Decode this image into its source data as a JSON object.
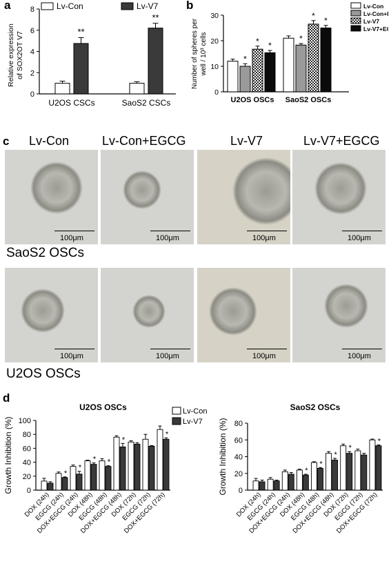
{
  "colors": {
    "white_bar": "#ffffff",
    "dark_bar": "#3a3a3a",
    "gray_bar": "#9a9a9a",
    "black_bar": "#0b0b0b",
    "photo_bg": "#d3d4cf",
    "photo_bg_warm": "#d6d2c6",
    "sphere": "#9c9c94"
  },
  "panels": {
    "a": "a",
    "b": "b",
    "c": "c",
    "d": "d"
  },
  "section_c": {
    "headers": [
      "Lv-Con",
      "Lv-Con+EGCG",
      "Lv-V7",
      "Lv-V7+EGCG"
    ],
    "row1_label": "SaoS2 OSCs",
    "row2_label": "U2OS OSCs",
    "scale_label": "100μm"
  },
  "chart_data": [
    {
      "type": "bar",
      "panel": "a",
      "categories": [
        "U2OS CSCs",
        "SaoS2 CSCs"
      ],
      "series": [
        {
          "name": "Lv-Con",
          "values": [
            1.0,
            1.0
          ],
          "errors": [
            0.2,
            0.15
          ]
        },
        {
          "name": "Lv-V7",
          "values": [
            4.75,
            6.2
          ],
          "errors": [
            0.55,
            0.45
          ]
        }
      ],
      "ylabel": "Relative expression of SOX2OT V7",
      "ylim": [
        0,
        8
      ],
      "yticks": [
        "0",
        "2",
        "4",
        "6",
        "8"
      ],
      "annotations": [
        "**",
        "**"
      ]
    },
    {
      "type": "bar",
      "panel": "b",
      "categories": [
        "U2OS OSCs",
        "SaoS2 OSCs"
      ],
      "series": [
        {
          "name": "Lv-Con",
          "values": [
            12,
            21
          ],
          "errors": [
            0.8,
            0.9
          ]
        },
        {
          "name": "Lv-Con+EGCG",
          "values": [
            10,
            18.3
          ],
          "errors": [
            1.0,
            0.6
          ]
        },
        {
          "name": "Lv-V7",
          "values": [
            16.7,
            26.5
          ],
          "errors": [
            1.2,
            1.4
          ]
        },
        {
          "name": "Lv-V7+EGCG",
          "values": [
            15.3,
            25
          ],
          "errors": [
            0.9,
            1.0
          ]
        }
      ],
      "ylabel": "Number of spheres per well / 10³ cells",
      "ylim": [
        0,
        30
      ],
      "yticks": [
        "0",
        "10",
        "20",
        "30"
      ],
      "annotations": [
        "*",
        "*",
        "*",
        "*",
        "*",
        "*"
      ]
    },
    {
      "type": "bar",
      "panel": "d-left",
      "title": "U2OS OSCs",
      "categories": [
        "DOX (24h)",
        "EGCG (24h)",
        "DOX+EGCG (24h)",
        "DOX (48h)",
        "EGCG (48h)",
        "DOX+EGCG (48h)",
        "DOX (72h)",
        "EGCG (72h)",
        "DOX+EGCG (72h)"
      ],
      "series": [
        {
          "name": "Lv-Con",
          "values": [
            13,
            24,
            34,
            42,
            42,
            76,
            69,
            73,
            87
          ],
          "errors": [
            4,
            2,
            2,
            1,
            3,
            2,
            2,
            7,
            5
          ]
        },
        {
          "name": "Lv-V7",
          "values": [
            10,
            18,
            23,
            37,
            34,
            62,
            66,
            63,
            73
          ],
          "errors": [
            2,
            1,
            4,
            2,
            1,
            5,
            2,
            1,
            2
          ]
        }
      ],
      "stars": [
        false,
        true,
        true,
        true,
        true,
        true,
        false,
        false,
        true
      ],
      "ylabel": "Growth Inhibition (%)",
      "ylim": [
        0,
        100
      ],
      "yticks": [
        "0",
        "20",
        "40",
        "60",
        "80",
        "100"
      ]
    },
    {
      "type": "bar",
      "panel": "d-right",
      "title": "SaoS2 OSCs",
      "categories": [
        "DOX (24h)",
        "EGCG (24h)",
        "DOX+EGCG (24h)",
        "DOX (48h)",
        "EGCG (48h)",
        "DOX+EGCG (48h)",
        "DOX (72h)",
        "EGCG (72h)",
        "DOX+EGCG (72h)"
      ],
      "series": [
        {
          "name": "Lv-Con",
          "values": [
            11,
            13,
            22,
            24,
            33,
            44,
            53,
            47,
            60
          ],
          "errors": [
            3,
            2,
            2,
            1,
            1,
            2,
            2,
            2,
            1
          ]
        },
        {
          "name": "Lv-V7",
          "values": [
            10,
            11,
            19,
            18,
            26,
            36,
            44,
            42,
            53
          ],
          "errors": [
            2,
            1,
            2,
            1,
            1,
            2,
            2,
            2,
            1
          ]
        }
      ],
      "stars": [
        false,
        false,
        false,
        true,
        true,
        true,
        true,
        false,
        true
      ],
      "ylabel": "Growth Inhibition (%)",
      "ylim": [
        0,
        80
      ],
      "yticks": [
        "0",
        "20",
        "40",
        "60",
        "80"
      ]
    }
  ]
}
